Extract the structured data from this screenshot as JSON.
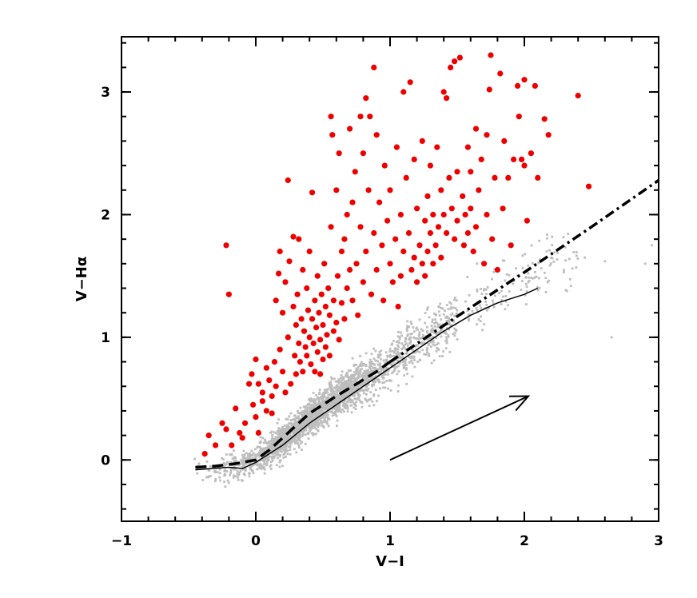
{
  "chart_data": {
    "type": "scatter",
    "xlabel": "V−I",
    "ylabel": "V−Hα",
    "xlim": [
      -1,
      3
    ],
    "ylim": [
      -0.5,
      3.45
    ],
    "x_major_ticks": [
      -1,
      0,
      1,
      2,
      3
    ],
    "y_major_ticks": [
      0,
      1,
      2,
      3
    ],
    "x_tick_labels": [
      "−1",
      "0",
      "1",
      "2",
      "3"
    ],
    "y_tick_labels": [
      "0",
      "1",
      "2",
      "3"
    ],
    "grid": false,
    "legend": "none",
    "colors": {
      "field_stars": "#bdbdbd",
      "halpha_emitters": "#ee0000",
      "lines": "#000000"
    },
    "series": [
      {
        "style": "gray-small-dots",
        "description_of_distribution": "dense main locus",
        "locus": [
          [
            -0.45,
            -0.08
          ],
          [
            -0.2,
            -0.06
          ],
          [
            0,
            0.0
          ],
          [
            0.2,
            0.15
          ],
          [
            0.4,
            0.35
          ],
          [
            0.6,
            0.5
          ],
          [
            0.8,
            0.65
          ],
          [
            1.0,
            0.8
          ],
          [
            1.2,
            0.95
          ],
          [
            1.4,
            1.1
          ],
          [
            1.6,
            1.25
          ],
          [
            1.8,
            1.4
          ],
          [
            2.0,
            1.52
          ],
          [
            2.2,
            1.62
          ]
        ],
        "outliers": [
          [
            2.45,
            1.65
          ],
          [
            2.6,
            1.62
          ],
          [
            2.65,
            1.0
          ],
          [
            2.95,
            1.75
          ],
          [
            2.9,
            1.6
          ]
        ]
      },
      {
        "style": "red-large-dots",
        "points": [
          [
            -0.22,
            1.75
          ],
          [
            -0.2,
            1.35
          ],
          [
            -0.38,
            0.05
          ],
          [
            -0.35,
            0.2
          ],
          [
            -0.3,
            0.12
          ],
          [
            -0.25,
            0.3
          ],
          [
            -0.22,
            0.25
          ],
          [
            -0.18,
            0.12
          ],
          [
            -0.15,
            0.42
          ],
          [
            -0.12,
            0.22
          ],
          [
            -0.1,
            0.18
          ],
          [
            -0.08,
            0.3
          ],
          [
            -0.05,
            0.62
          ],
          [
            -0.03,
            0.7
          ],
          [
            -0.02,
            0.45
          ],
          [
            0.0,
            0.35
          ],
          [
            0.0,
            0.82
          ],
          [
            0.02,
            0.62
          ],
          [
            0.02,
            0.22
          ],
          [
            0.05,
            0.55
          ],
          [
            0.05,
            0.48
          ],
          [
            0.08,
            0.75
          ],
          [
            0.08,
            0.4
          ],
          [
            0.1,
            0.65
          ],
          [
            0.12,
            0.52
          ],
          [
            0.12,
            0.38
          ],
          [
            0.14,
            0.8
          ],
          [
            0.15,
            1.3
          ],
          [
            0.15,
            0.6
          ],
          [
            0.17,
            1.52
          ],
          [
            0.18,
            1.7
          ],
          [
            0.18,
            0.9
          ],
          [
            0.2,
            1.2
          ],
          [
            0.2,
            0.72
          ],
          [
            0.22,
            1.45
          ],
          [
            0.22,
            0.55
          ],
          [
            0.24,
            2.28
          ],
          [
            0.24,
            1.0
          ],
          [
            0.25,
            1.62
          ],
          [
            0.26,
            0.62
          ],
          [
            0.28,
            1.82
          ],
          [
            0.28,
            1.25
          ],
          [
            0.29,
            0.85
          ],
          [
            0.3,
            1.1
          ],
          [
            0.3,
            0.7
          ],
          [
            0.31,
            1.35
          ],
          [
            0.32,
            0.95
          ],
          [
            0.32,
            1.8
          ],
          [
            0.33,
            0.8
          ],
          [
            0.34,
            1.15
          ],
          [
            0.35,
            1.55
          ],
          [
            0.35,
            0.72
          ],
          [
            0.36,
            1.05
          ],
          [
            0.37,
            0.92
          ],
          [
            0.38,
            1.4
          ],
          [
            0.38,
            0.85
          ],
          [
            0.39,
            1.22
          ],
          [
            0.4,
            1.0
          ],
          [
            0.4,
            1.7
          ],
          [
            0.41,
            0.78
          ],
          [
            0.42,
            1.15
          ],
          [
            0.42,
            2.18
          ],
          [
            0.43,
            0.95
          ],
          [
            0.44,
            1.3
          ],
          [
            0.44,
            0.72
          ],
          [
            0.45,
            1.08
          ],
          [
            0.46,
            0.88
          ],
          [
            0.46,
            1.5
          ],
          [
            0.47,
            1.2
          ],
          [
            0.48,
            0.98
          ],
          [
            0.48,
            0.7
          ],
          [
            0.49,
            1.35
          ],
          [
            0.5,
            1.1
          ],
          [
            0.5,
            0.82
          ],
          [
            0.51,
            1.6
          ],
          [
            0.52,
            1.25
          ],
          [
            0.52,
            0.92
          ],
          [
            0.53,
            1.02
          ],
          [
            0.54,
            1.4
          ],
          [
            0.55,
            1.18
          ],
          [
            0.55,
            0.85
          ],
          [
            0.56,
            1.9
          ],
          [
            0.56,
            2.8
          ],
          [
            0.57,
            2.65
          ],
          [
            0.58,
            1.05
          ],
          [
            0.58,
            1.3
          ],
          [
            0.6,
            2.2
          ],
          [
            0.6,
            1.12
          ],
          [
            0.61,
            1.5
          ],
          [
            0.62,
            2.5
          ],
          [
            0.62,
            0.98
          ],
          [
            0.64,
            1.7
          ],
          [
            0.64,
            1.28
          ],
          [
            0.66,
            1.8
          ],
          [
            0.66,
            1.15
          ],
          [
            0.68,
            2.0
          ],
          [
            0.68,
            1.4
          ],
          [
            0.7,
            2.7
          ],
          [
            0.7,
            1.55
          ],
          [
            0.72,
            1.3
          ],
          [
            0.72,
            2.1
          ],
          [
            0.74,
            2.35
          ],
          [
            0.75,
            1.6
          ],
          [
            0.76,
            1.18
          ],
          [
            0.78,
            2.8
          ],
          [
            0.78,
            1.9
          ],
          [
            0.8,
            2.5
          ],
          [
            0.8,
            1.45
          ],
          [
            0.82,
            2.95
          ],
          [
            0.82,
            1.7
          ],
          [
            0.84,
            2.2
          ],
          [
            0.85,
            2.8
          ],
          [
            0.86,
            1.35
          ],
          [
            0.88,
            3.2
          ],
          [
            0.88,
            1.85
          ],
          [
            0.9,
            2.65
          ],
          [
            0.9,
            1.55
          ],
          [
            0.92,
            2.1
          ],
          [
            0.94,
            1.75
          ],
          [
            0.95,
            1.3
          ],
          [
            0.96,
            2.4
          ],
          [
            0.98,
            1.95
          ],
          [
            1.0,
            2.2
          ],
          [
            1.0,
            1.6
          ],
          [
            1.02,
            1.45
          ],
          [
            1.04,
            1.8
          ],
          [
            1.05,
            2.55
          ],
          [
            1.06,
            1.25
          ],
          [
            1.08,
            2.0
          ],
          [
            1.08,
            1.5
          ],
          [
            1.1,
            1.7
          ],
          [
            1.1,
            3.0
          ],
          [
            1.12,
            2.3
          ],
          [
            1.14,
            1.85
          ],
          [
            1.15,
            3.08
          ],
          [
            1.16,
            1.55
          ],
          [
            1.18,
            2.45
          ],
          [
            1.18,
            1.65
          ],
          [
            1.2,
            2.05
          ],
          [
            1.2,
            1.45
          ],
          [
            1.22,
            1.75
          ],
          [
            1.24,
            2.6
          ],
          [
            1.24,
            1.6
          ],
          [
            1.26,
            1.95
          ],
          [
            1.26,
            1.5
          ],
          [
            1.28,
            2.15
          ],
          [
            1.28,
            1.7
          ],
          [
            1.3,
            1.85
          ],
          [
            1.3,
            2.4
          ],
          [
            1.32,
            1.6
          ],
          [
            1.32,
            2.0
          ],
          [
            1.34,
            1.75
          ],
          [
            1.35,
            2.55
          ],
          [
            1.36,
            1.9
          ],
          [
            1.38,
            2.2
          ],
          [
            1.38,
            1.65
          ],
          [
            1.4,
            2.0
          ],
          [
            1.4,
            3.0
          ],
          [
            1.42,
            1.85
          ],
          [
            1.42,
            2.95
          ],
          [
            1.44,
            2.3
          ],
          [
            1.45,
            3.2
          ],
          [
            1.46,
            2.05
          ],
          [
            1.48,
            1.8
          ],
          [
            1.48,
            3.25
          ],
          [
            1.5,
            2.35
          ],
          [
            1.5,
            1.95
          ],
          [
            1.52,
            3.28
          ],
          [
            1.54,
            2.15
          ],
          [
            1.55,
            1.75
          ],
          [
            1.56,
            2.0
          ],
          [
            1.58,
            2.55
          ],
          [
            1.58,
            1.85
          ],
          [
            1.6,
            2.35
          ],
          [
            1.6,
            2.05
          ],
          [
            1.62,
            1.7
          ],
          [
            1.64,
            2.7
          ],
          [
            1.64,
            1.9
          ],
          [
            1.66,
            2.2
          ],
          [
            1.68,
            2.45
          ],
          [
            1.7,
            1.6
          ],
          [
            1.72,
            2.65
          ],
          [
            1.72,
            2.0
          ],
          [
            1.74,
            3.02
          ],
          [
            1.75,
            3.3
          ],
          [
            1.76,
            1.8
          ],
          [
            1.78,
            2.3
          ],
          [
            1.8,
            1.55
          ],
          [
            1.82,
            3.15
          ],
          [
            1.84,
            2.05
          ],
          [
            1.85,
            2.6
          ],
          [
            1.88,
            2.3
          ],
          [
            1.9,
            1.75
          ],
          [
            1.92,
            2.45
          ],
          [
            1.95,
            3.05
          ],
          [
            1.96,
            2.8
          ],
          [
            1.98,
            2.45
          ],
          [
            2.0,
            3.1
          ],
          [
            2.0,
            2.4
          ],
          [
            2.02,
            1.95
          ],
          [
            2.05,
            2.5
          ],
          [
            2.08,
            3.05
          ],
          [
            2.1,
            2.3
          ],
          [
            2.15,
            2.78
          ],
          [
            2.18,
            2.65
          ],
          [
            2.4,
            2.97
          ],
          [
            2.48,
            2.23
          ]
        ]
      }
    ],
    "lines": [
      {
        "style": "dashed-thick",
        "points": [
          [
            -0.45,
            -0.06
          ],
          [
            -0.3,
            -0.05
          ],
          [
            -0.15,
            -0.03
          ],
          [
            0.0,
            0.0
          ],
          [
            0.1,
            0.08
          ],
          [
            0.2,
            0.18
          ],
          [
            0.3,
            0.28
          ],
          [
            0.4,
            0.38
          ],
          [
            0.5,
            0.45
          ],
          [
            0.6,
            0.52
          ],
          [
            0.75,
            0.62
          ],
          [
            0.9,
            0.72
          ],
          [
            1.0,
            0.8
          ]
        ]
      },
      {
        "style": "dash-dot-thick",
        "points": [
          [
            1.0,
            0.8
          ],
          [
            1.5,
            1.17
          ],
          [
            2.0,
            1.53
          ],
          [
            2.5,
            1.9
          ],
          [
            3.0,
            2.28
          ]
        ]
      },
      {
        "style": "solid-thin",
        "points": [
          [
            -0.45,
            -0.08
          ],
          [
            -0.2,
            -0.06
          ],
          [
            -0.1,
            -0.07
          ],
          [
            0.0,
            -0.02
          ],
          [
            0.2,
            0.12
          ],
          [
            0.4,
            0.3
          ],
          [
            0.6,
            0.45
          ],
          [
            0.8,
            0.6
          ],
          [
            1.0,
            0.75
          ],
          [
            1.2,
            0.9
          ],
          [
            1.4,
            1.05
          ],
          [
            1.6,
            1.18
          ],
          [
            1.8,
            1.28
          ],
          [
            2.0,
            1.35
          ],
          [
            2.1,
            1.4
          ]
        ]
      }
    ],
    "arrow": {
      "from": [
        1.0,
        0.0
      ],
      "to": [
        2.03,
        0.52
      ]
    }
  }
}
